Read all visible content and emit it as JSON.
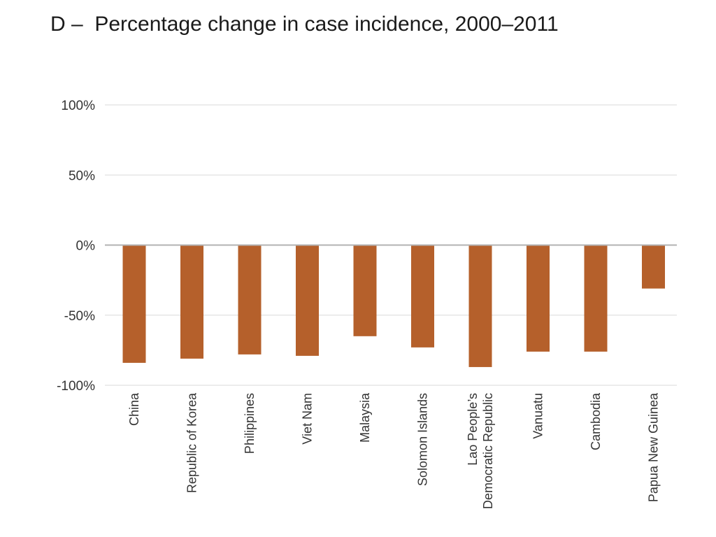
{
  "chart_data": {
    "type": "bar",
    "title": "D –  Percentage change in case incidence, 2000–2011",
    "categories": [
      [
        "China"
      ],
      [
        "Republic of Korea"
      ],
      [
        "Philippines"
      ],
      [
        "Viet Nam"
      ],
      [
        "Malaysia"
      ],
      [
        "Solomon Islands"
      ],
      [
        "Lao People’s",
        "Democratic Republic"
      ],
      [
        "Vanuatu"
      ],
      [
        "Cambodia"
      ],
      [
        "Papua New Guinea"
      ]
    ],
    "values": [
      -84,
      -81,
      -78,
      -79,
      -65,
      -73,
      -87,
      -76,
      -76,
      -31
    ],
    "value_unit": "%",
    "ylim": [
      -100,
      100
    ],
    "yticks": [
      100,
      50,
      0,
      -50,
      -100
    ],
    "ytick_labels": [
      "100%",
      "50%",
      "0%",
      "-50%",
      "-100%"
    ],
    "xlabel": "",
    "ylabel": "",
    "grid": true,
    "legend": "none",
    "bar_color": "#b5602b",
    "grid_color": "#d9d9d9",
    "zero_line_color": "#b3b3b3"
  }
}
